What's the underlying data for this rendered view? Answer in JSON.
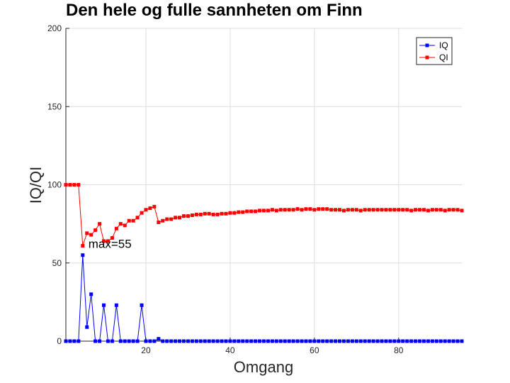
{
  "chart_data": {
    "type": "line",
    "title": "Den hele og fulle sannheten om Finn",
    "xlabel": "Omgang",
    "ylabel": "IQ/QI",
    "xlim": [
      1,
      95
    ],
    "ylim": [
      0,
      200
    ],
    "xticks": [
      20,
      40,
      60,
      80
    ],
    "yticks": [
      0,
      50,
      100,
      150,
      200
    ],
    "grid": true,
    "legend": "top-right",
    "x": [
      1,
      2,
      3,
      4,
      5,
      6,
      7,
      8,
      9,
      10,
      11,
      12,
      13,
      14,
      15,
      16,
      17,
      18,
      19,
      20,
      21,
      22,
      23,
      24,
      25,
      26,
      27,
      28,
      29,
      30,
      31,
      32,
      33,
      34,
      35,
      36,
      37,
      38,
      39,
      40,
      41,
      42,
      43,
      44,
      45,
      46,
      47,
      48,
      49,
      50,
      51,
      52,
      53,
      54,
      55,
      56,
      57,
      58,
      59,
      60,
      61,
      62,
      63,
      64,
      65,
      66,
      67,
      68,
      69,
      70,
      71,
      72,
      73,
      74,
      75,
      76,
      77,
      78,
      79,
      80,
      81,
      82,
      83,
      84,
      85,
      86,
      87,
      88,
      89,
      90,
      91,
      92,
      93,
      94,
      95
    ],
    "series": [
      {
        "name": "IQ",
        "color": "#0000ff",
        "values": [
          0,
          0,
          0,
          0,
          55,
          9,
          30,
          0,
          0,
          23,
          0,
          0,
          23,
          0,
          0,
          0,
          0,
          0,
          23,
          0,
          0,
          0,
          1.5,
          0,
          0,
          0,
          0,
          0,
          0,
          0,
          0,
          0,
          0,
          0,
          0,
          0,
          0,
          0,
          0,
          0,
          0,
          0,
          0,
          0,
          0,
          0,
          0,
          0,
          0,
          0,
          0,
          0,
          0,
          0,
          0,
          0,
          0,
          0,
          0,
          0,
          0,
          0,
          0,
          0,
          0,
          0,
          0,
          0,
          0,
          0,
          0,
          0,
          0,
          0,
          0,
          0,
          0,
          0,
          0,
          0,
          0,
          0,
          0,
          0,
          0,
          0,
          0,
          0,
          0,
          0,
          0,
          0,
          0,
          0,
          0
        ]
      },
      {
        "name": "QI",
        "color": "#ff0000",
        "values": [
          100,
          100,
          100,
          100,
          61,
          69,
          68,
          71,
          75,
          64,
          64,
          66,
          72,
          75,
          74,
          77,
          77,
          79,
          82,
          84,
          85,
          86,
          76,
          77,
          78,
          78,
          79,
          79,
          80,
          80,
          80.5,
          81,
          81,
          81.5,
          81.5,
          81,
          81,
          81.5,
          81.5,
          82,
          82,
          82.5,
          82.5,
          83,
          83,
          83,
          83.5,
          83.5,
          83.5,
          84,
          83.5,
          84,
          84,
          84,
          84,
          84.5,
          84,
          84.5,
          84.5,
          84,
          84.5,
          84.5,
          84.5,
          84,
          84,
          84,
          83.5,
          84,
          84,
          84,
          83.5,
          84,
          84,
          84,
          84,
          84,
          84,
          84,
          84,
          84,
          84,
          84,
          83.5,
          84,
          84,
          84,
          83.5,
          84,
          84,
          84,
          83.5,
          84,
          84,
          84,
          83.5
        ]
      }
    ],
    "annotation": {
      "text": "max=55",
      "x": 6,
      "y": 55
    }
  }
}
